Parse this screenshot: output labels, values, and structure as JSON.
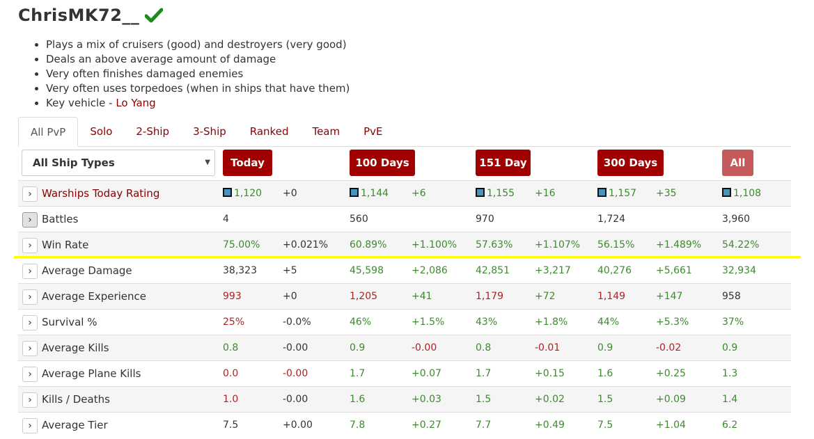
{
  "player": {
    "name": "ChrisMK72__",
    "verified_icon": "check-icon",
    "verified_color": "#1e8a1e"
  },
  "summary": [
    "Plays a mix of cruisers (good) and destroyers (very good)",
    "Deals an above average amount of damage",
    "Very often finishes damaged enemies",
    "Very often uses torpedoes (when in ships that have them)"
  ],
  "key_vehicle": {
    "label": "Key vehicle - ",
    "ship": "Lo Yang"
  },
  "tabs": [
    {
      "label": "All PvP",
      "active": true
    },
    {
      "label": "Solo"
    },
    {
      "label": "2-Ship"
    },
    {
      "label": "3-Ship"
    },
    {
      "label": "Ranked"
    },
    {
      "label": "Team"
    },
    {
      "label": "PvE"
    }
  ],
  "filter": {
    "selected": "All Ship Types"
  },
  "periods": [
    "Today",
    "100 Days",
    "151 Day",
    "300 Days",
    "All"
  ],
  "colors": {
    "accent": "#a10000",
    "good": "#3d8a2e",
    "bad": "#b02020",
    "highlight": "#ffff00"
  },
  "rows": [
    {
      "label": "Warships Today Rating",
      "link": true,
      "icon": true,
      "cells": [
        [
          "1,120",
          "g"
        ],
        [
          "+0",
          "k"
        ],
        [
          "1,144",
          "g"
        ],
        [
          "+6",
          "g"
        ],
        [
          "1,155",
          "g"
        ],
        [
          "+16",
          "g"
        ],
        [
          "1,157",
          "g"
        ],
        [
          "+35",
          "g"
        ],
        [
          "1,108",
          "g"
        ]
      ]
    },
    {
      "label": "Battles",
      "active": true,
      "cells": [
        [
          "4",
          "k"
        ],
        [
          "",
          ""
        ],
        [
          "560",
          "k"
        ],
        [
          "",
          ""
        ],
        [
          "970",
          "k"
        ],
        [
          "",
          ""
        ],
        [
          "1,724",
          "k"
        ],
        [
          "",
          ""
        ],
        [
          "3,960",
          "k"
        ]
      ]
    },
    {
      "label": "Win Rate",
      "cells": [
        [
          "75.00%",
          "g"
        ],
        [
          "+0.021%",
          "k"
        ],
        [
          "60.89%",
          "g"
        ],
        [
          "+1.100%",
          "g"
        ],
        [
          "57.63%",
          "g"
        ],
        [
          "+1.107%",
          "g"
        ],
        [
          "56.15%",
          "g"
        ],
        [
          "+1.489%",
          "g"
        ],
        [
          "54.22%",
          "g"
        ]
      ]
    },
    {
      "label": "Average Damage",
      "cells": [
        [
          "38,323",
          "k"
        ],
        [
          "+5",
          "k"
        ],
        [
          "45,598",
          "g"
        ],
        [
          "+2,086",
          "g"
        ],
        [
          "42,851",
          "g"
        ],
        [
          "+3,217",
          "g"
        ],
        [
          "40,276",
          "g"
        ],
        [
          "+5,661",
          "g"
        ],
        [
          "32,934",
          "g"
        ]
      ]
    },
    {
      "label": "Average Experience",
      "cells": [
        [
          "993",
          "r"
        ],
        [
          "+0",
          "k"
        ],
        [
          "1,205",
          "r"
        ],
        [
          "+41",
          "g"
        ],
        [
          "1,179",
          "r"
        ],
        [
          "+72",
          "g"
        ],
        [
          "1,149",
          "r"
        ],
        [
          "+147",
          "g"
        ],
        [
          "958",
          "k"
        ]
      ]
    },
    {
      "label": "Survival %",
      "cells": [
        [
          "25%",
          "r"
        ],
        [
          "-0.0%",
          "k"
        ],
        [
          "46%",
          "g"
        ],
        [
          "+1.5%",
          "g"
        ],
        [
          "43%",
          "g"
        ],
        [
          "+1.8%",
          "g"
        ],
        [
          "44%",
          "g"
        ],
        [
          "+5.3%",
          "g"
        ],
        [
          "37%",
          "g"
        ]
      ]
    },
    {
      "label": "Average Kills",
      "cells": [
        [
          "0.8",
          "g"
        ],
        [
          "-0.00",
          "k"
        ],
        [
          "0.9",
          "g"
        ],
        [
          "-0.00",
          "r"
        ],
        [
          "0.8",
          "g"
        ],
        [
          "-0.01",
          "r"
        ],
        [
          "0.9",
          "g"
        ],
        [
          "-0.02",
          "r"
        ],
        [
          "0.9",
          "g"
        ]
      ]
    },
    {
      "label": "Average Plane Kills",
      "cells": [
        [
          "0.0",
          "r"
        ],
        [
          "-0.00",
          "r"
        ],
        [
          "1.7",
          "g"
        ],
        [
          "+0.07",
          "g"
        ],
        [
          "1.7",
          "g"
        ],
        [
          "+0.15",
          "g"
        ],
        [
          "1.6",
          "g"
        ],
        [
          "+0.25",
          "g"
        ],
        [
          "1.3",
          "g"
        ]
      ]
    },
    {
      "label": "Kills / Deaths",
      "cells": [
        [
          "1.0",
          "r"
        ],
        [
          "-0.00",
          "k"
        ],
        [
          "1.6",
          "g"
        ],
        [
          "+0.03",
          "g"
        ],
        [
          "1.5",
          "g"
        ],
        [
          "+0.02",
          "g"
        ],
        [
          "1.5",
          "g"
        ],
        [
          "+0.09",
          "g"
        ],
        [
          "1.4",
          "g"
        ]
      ]
    },
    {
      "label": "Average Tier",
      "cells": [
        [
          "7.5",
          "k"
        ],
        [
          "+0.00",
          "k"
        ],
        [
          "7.8",
          "g"
        ],
        [
          "+0.27",
          "g"
        ],
        [
          "7.7",
          "g"
        ],
        [
          "+0.49",
          "g"
        ],
        [
          "7.5",
          "g"
        ],
        [
          "+1.04",
          "g"
        ],
        [
          "6.2",
          "g"
        ]
      ]
    }
  ]
}
